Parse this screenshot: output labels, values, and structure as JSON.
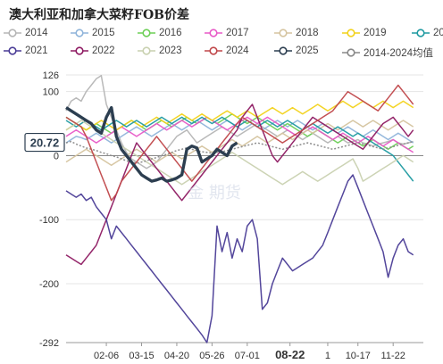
{
  "title": "澳大利亚和加拿大菜籽FOB价差",
  "legend": [
    {
      "name": "2014",
      "color": "#b5b5b5"
    },
    {
      "name": "2015",
      "color": "#8fb4da"
    },
    {
      "name": "2016",
      "color": "#6dcf57"
    },
    {
      "name": "2017",
      "color": "#e85ac7"
    },
    {
      "name": "2018",
      "color": "#d5c49f"
    },
    {
      "name": "2019",
      "color": "#f2d21a"
    },
    {
      "name": "2020",
      "color": "#1f9aa1"
    },
    {
      "name": "2021",
      "color": "#4a3c96"
    },
    {
      "name": "2022",
      "color": "#8e1a62"
    },
    {
      "name": "2023",
      "color": "#c9d1b0"
    },
    {
      "name": "2024",
      "color": "#c0474a"
    },
    {
      "name": "2025",
      "color": "#2c3e50"
    },
    {
      "name": "2014-2024均值",
      "color": "#888888"
    }
  ],
  "current_value_label": "20.72",
  "watermark": "金 期货",
  "chart_data": {
    "type": "line",
    "title": "澳大利亚和加拿大菜籽FOB价差",
    "ylim": [
      -292,
      126
    ],
    "yticks": [
      126,
      100,
      0,
      -100,
      -200,
      -292
    ],
    "x_tick_labels": [
      "02-06",
      "03-15",
      "04-20",
      "05-26",
      "07-01",
      "08-22",
      "1",
      "10-17",
      "11-22"
    ],
    "x_tick_pos": [
      8,
      15,
      22,
      29,
      36,
      44.5,
      52,
      58,
      65
    ],
    "x_max": 71,
    "series": [
      {
        "name": "2014",
        "color": "#b5b5b5",
        "values": [
          70,
          85,
          90,
          85,
          100,
          110,
          120,
          125,
          80,
          60,
          40,
          20,
          5,
          -5,
          -10,
          -15,
          -20,
          -15,
          -10,
          0,
          10,
          20,
          30,
          35,
          40,
          30,
          20,
          25,
          30,
          35,
          40,
          45,
          40,
          35,
          30,
          35,
          40,
          45,
          50,
          45,
          40,
          35,
          30,
          35,
          40,
          35,
          30,
          25,
          30,
          35,
          30,
          25,
          20,
          25,
          30,
          25,
          20,
          22,
          25,
          20,
          18,
          15,
          18,
          20,
          22,
          25,
          20,
          18,
          20,
          22
        ]
      },
      {
        "name": "2015",
        "color": "#8fb4da",
        "values": [
          20,
          25,
          30,
          28,
          25,
          30,
          35,
          30,
          25,
          20,
          25,
          30,
          35,
          40,
          45,
          40,
          35,
          30,
          35,
          40,
          45,
          50,
          45,
          40,
          45,
          50,
          55,
          50,
          45,
          40,
          45,
          50,
          55,
          50,
          45,
          40,
          45,
          50,
          45,
          40,
          45,
          50,
          55,
          50,
          45,
          50,
          55,
          50,
          45,
          40,
          45,
          50,
          45,
          40,
          35,
          40,
          45,
          40,
          35,
          30,
          35,
          40,
          35,
          30,
          25,
          30,
          35,
          30,
          25,
          20
        ]
      },
      {
        "name": "2016",
        "color": "#6dcf57",
        "values": [
          60,
          55,
          50,
          45,
          40,
          45,
          50,
          45,
          40,
          35,
          40,
          45,
          50,
          55,
          50,
          45,
          40,
          45,
          50,
          55,
          50,
          45,
          50,
          55,
          60,
          55,
          50,
          55,
          60,
          55,
          50,
          55,
          60,
          65,
          60,
          55,
          50,
          55,
          60,
          55,
          50,
          45,
          40,
          45,
          50,
          45,
          40,
          35,
          30,
          35,
          40,
          35,
          30,
          25,
          20,
          25,
          30,
          25,
          20,
          15,
          20,
          25,
          20,
          15,
          10,
          15,
          20,
          15,
          10,
          15
        ]
      },
      {
        "name": "2017",
        "color": "#e85ac7",
        "values": [
          30,
          35,
          40,
          35,
          30,
          25,
          20,
          25,
          30,
          35,
          40,
          45,
          40,
          35,
          30,
          35,
          40,
          45,
          50,
          45,
          40,
          45,
          50,
          55,
          50,
          45,
          50,
          55,
          60,
          55,
          50,
          45,
          40,
          45,
          50,
          55,
          60,
          55,
          50,
          55,
          60,
          55,
          50,
          45,
          40,
          35,
          30,
          35,
          40,
          45,
          40,
          35,
          30,
          25,
          30,
          35,
          30,
          25,
          20,
          25,
          30,
          25,
          20,
          15,
          20,
          25,
          20,
          15,
          10,
          5
        ]
      },
      {
        "name": "2018",
        "color": "#d5c49f",
        "values": [
          -10,
          -5,
          0,
          5,
          10,
          5,
          0,
          -5,
          -10,
          -15,
          -10,
          -5,
          0,
          5,
          10,
          5,
          0,
          -5,
          -10,
          -5,
          0,
          5,
          0,
          -5,
          0,
          5,
          10,
          15,
          10,
          5,
          10,
          15,
          20,
          25,
          20,
          15,
          20,
          25,
          30,
          25,
          20,
          25,
          30,
          35,
          30,
          25,
          30,
          35,
          40,
          35,
          40,
          45,
          50,
          45,
          40,
          45,
          50,
          55,
          50,
          45,
          50,
          55,
          50,
          45,
          40,
          45,
          50,
          55,
          50,
          45
        ]
      },
      {
        "name": "2019",
        "color": "#f2d21a",
        "values": [
          40,
          45,
          50,
          45,
          40,
          45,
          50,
          55,
          50,
          45,
          40,
          45,
          50,
          55,
          50,
          45,
          50,
          55,
          60,
          55,
          50,
          55,
          60,
          65,
          60,
          55,
          60,
          65,
          60,
          55,
          60,
          65,
          70,
          65,
          60,
          65,
          70,
          65,
          60,
          65,
          70,
          75,
          70,
          65,
          70,
          75,
          70,
          65,
          70,
          75,
          80,
          75,
          70,
          75,
          80,
          85,
          80,
          75,
          80,
          85,
          80,
          75,
          80,
          85,
          80,
          75,
          80,
          85,
          80,
          75
        ]
      },
      {
        "name": "2020",
        "color": "#1f9aa1",
        "values": [
          55,
          50,
          45,
          50,
          55,
          50,
          45,
          40,
          45,
          50,
          55,
          50,
          45,
          50,
          55,
          50,
          45,
          50,
          55,
          60,
          55,
          50,
          55,
          60,
          55,
          50,
          55,
          60,
          55,
          50,
          55,
          60,
          55,
          50,
          45,
          50,
          55,
          50,
          45,
          50,
          55,
          50,
          45,
          50,
          55,
          50,
          45,
          40,
          45,
          50,
          45,
          40,
          35,
          40,
          45,
          40,
          35,
          30,
          35,
          30,
          25,
          20,
          15,
          10,
          5,
          0,
          -10,
          -20,
          -30,
          -40
        ]
      },
      {
        "name": "2021",
        "color": "#4a3c96",
        "values": [
          -55,
          -60,
          -65,
          -60,
          -70,
          -65,
          -80,
          -90,
          -100,
          -130,
          -110,
          -120,
          -130,
          -140,
          -150,
          -160,
          -170,
          -180,
          -190,
          -200,
          -210,
          -220,
          -230,
          -240,
          -250,
          -260,
          -270,
          -280,
          -292,
          -250,
          -110,
          -150,
          -120,
          -160,
          -130,
          -150,
          -110,
          -100,
          -130,
          -240,
          -230,
          -200,
          -180,
          -160,
          -170,
          -180,
          -175,
          -170,
          -165,
          -160,
          -150,
          -140,
          -120,
          -100,
          -80,
          -60,
          -40,
          -30,
          -50,
          -70,
          -90,
          -110,
          -130,
          -150,
          -190,
          -160,
          -140,
          -130,
          -150,
          -155
        ]
      },
      {
        "name": "2022",
        "color": "#8e1a62",
        "values": [
          -155,
          -160,
          -165,
          -170,
          -160,
          -150,
          -140,
          -120,
          -100,
          -80,
          -60,
          -40,
          -20,
          0,
          20,
          10,
          0,
          -10,
          -20,
          -30,
          -40,
          -50,
          -60,
          -70,
          -60,
          -50,
          -40,
          -30,
          -20,
          -10,
          0,
          10,
          20,
          30,
          40,
          60,
          70,
          80,
          60,
          40,
          20,
          0,
          -10,
          0,
          10,
          20,
          30,
          40,
          50,
          60,
          55,
          50,
          45,
          40,
          35,
          30,
          25,
          20,
          15,
          10,
          20,
          30,
          40,
          50,
          55,
          60,
          50,
          40,
          30,
          40
        ]
      },
      {
        "name": "2023",
        "color": "#c9d1b0",
        "values": [
          40,
          45,
          50,
          55,
          50,
          45,
          40,
          35,
          30,
          25,
          20,
          15,
          10,
          5,
          0,
          -5,
          -10,
          -15,
          -20,
          -25,
          -30,
          -35,
          -40,
          -45,
          -40,
          -35,
          -30,
          -25,
          -20,
          -15,
          -10,
          -5,
          0,
          5,
          0,
          -5,
          -10,
          -15,
          -20,
          -25,
          -30,
          -35,
          -40,
          -45,
          -40,
          -35,
          -30,
          -25,
          -30,
          -35,
          -40,
          -35,
          -30,
          -25,
          -20,
          -15,
          -10,
          -5,
          -20,
          -40,
          -35,
          -30,
          -25,
          -20,
          -15,
          -10,
          -5,
          0,
          -5,
          -10
        ]
      },
      {
        "name": "2024",
        "color": "#c0474a",
        "values": [
          60,
          55,
          50,
          45,
          30,
          10,
          -10,
          -30,
          -50,
          -70,
          -60,
          -40,
          -30,
          -20,
          -10,
          0,
          10,
          20,
          30,
          20,
          10,
          0,
          -10,
          -20,
          -30,
          -40,
          -30,
          -20,
          -10,
          0,
          10,
          20,
          30,
          40,
          50,
          60,
          55,
          50,
          45,
          40,
          35,
          30,
          25,
          20,
          25,
          30,
          35,
          40,
          45,
          50,
          55,
          60,
          65,
          70,
          80,
          90,
          100,
          95,
          90,
          85,
          80,
          75,
          70,
          80,
          90,
          100,
          110,
          100,
          90,
          80
        ]
      },
      {
        "name": "2025",
        "color": "#2c3e50",
        "values": [
          75,
          70,
          65,
          60,
          55,
          50,
          40,
          35,
          60,
          75,
          30,
          10,
          0,
          -10,
          -20,
          -30,
          -35,
          -40,
          -38,
          -35,
          -40,
          -38,
          -35,
          -30,
          10,
          15,
          12,
          -10,
          -5,
          0,
          10,
          5,
          0,
          15,
          20
        ]
      },
      {
        "name": "2014-2024均值",
        "color": "#888888",
        "values": [
          20,
          22,
          18,
          15,
          12,
          10,
          8,
          5,
          3,
          0,
          -2,
          -5,
          -8,
          -10,
          -12,
          -10,
          -8,
          -5,
          -3,
          0,
          2,
          5,
          8,
          10,
          12,
          10,
          8,
          6,
          5,
          4,
          5,
          6,
          8,
          10,
          12,
          14,
          16,
          18,
          20,
          18,
          16,
          14,
          12,
          10,
          12,
          14,
          16,
          18,
          20,
          18,
          16,
          14,
          12,
          10,
          12,
          14,
          16,
          18,
          20,
          18,
          16,
          14,
          12,
          10,
          12,
          14,
          16,
          18,
          20,
          22
        ]
      }
    ]
  }
}
